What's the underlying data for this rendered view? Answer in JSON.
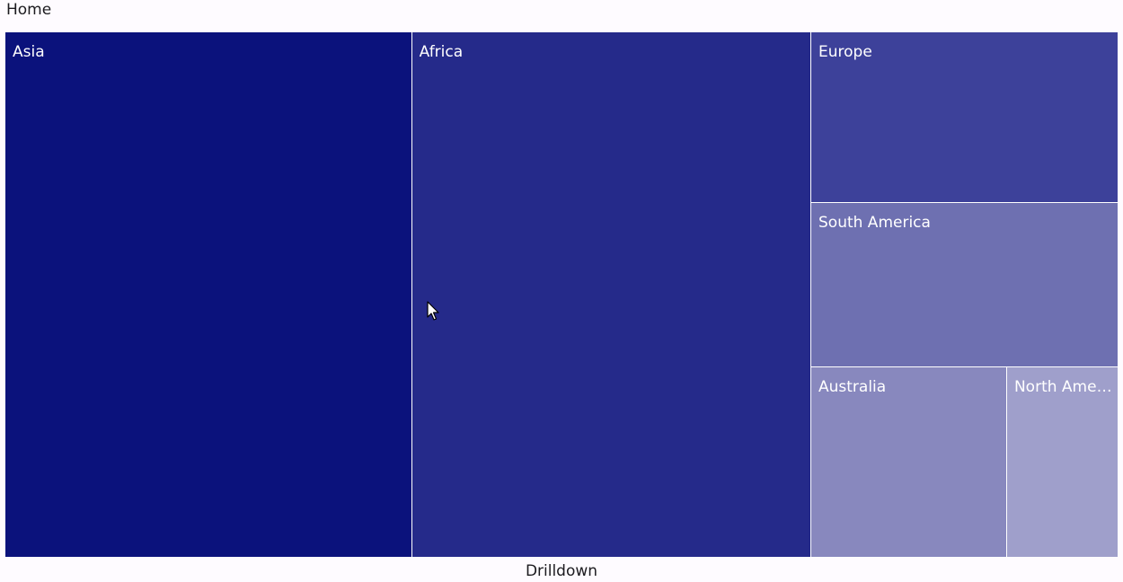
{
  "breadcrumb": {
    "home_label": "Home"
  },
  "chart_data": {
    "type": "treemap",
    "title": "Drilldown",
    "items": [
      {
        "label": "Asia",
        "value": 1520,
        "color": "#0b127c"
      },
      {
        "label": "Africa",
        "value": 1492,
        "color": "#252a8a"
      },
      {
        "label": "Europe",
        "value": 373,
        "color": "#3d419a"
      },
      {
        "label": "South America",
        "value": 359,
        "color": "#6e70b1"
      },
      {
        "label": "Australia",
        "value": 264,
        "color": "#8888be"
      },
      {
        "label": "North America",
        "value": 149,
        "color": "#9f9fcb"
      }
    ]
  }
}
